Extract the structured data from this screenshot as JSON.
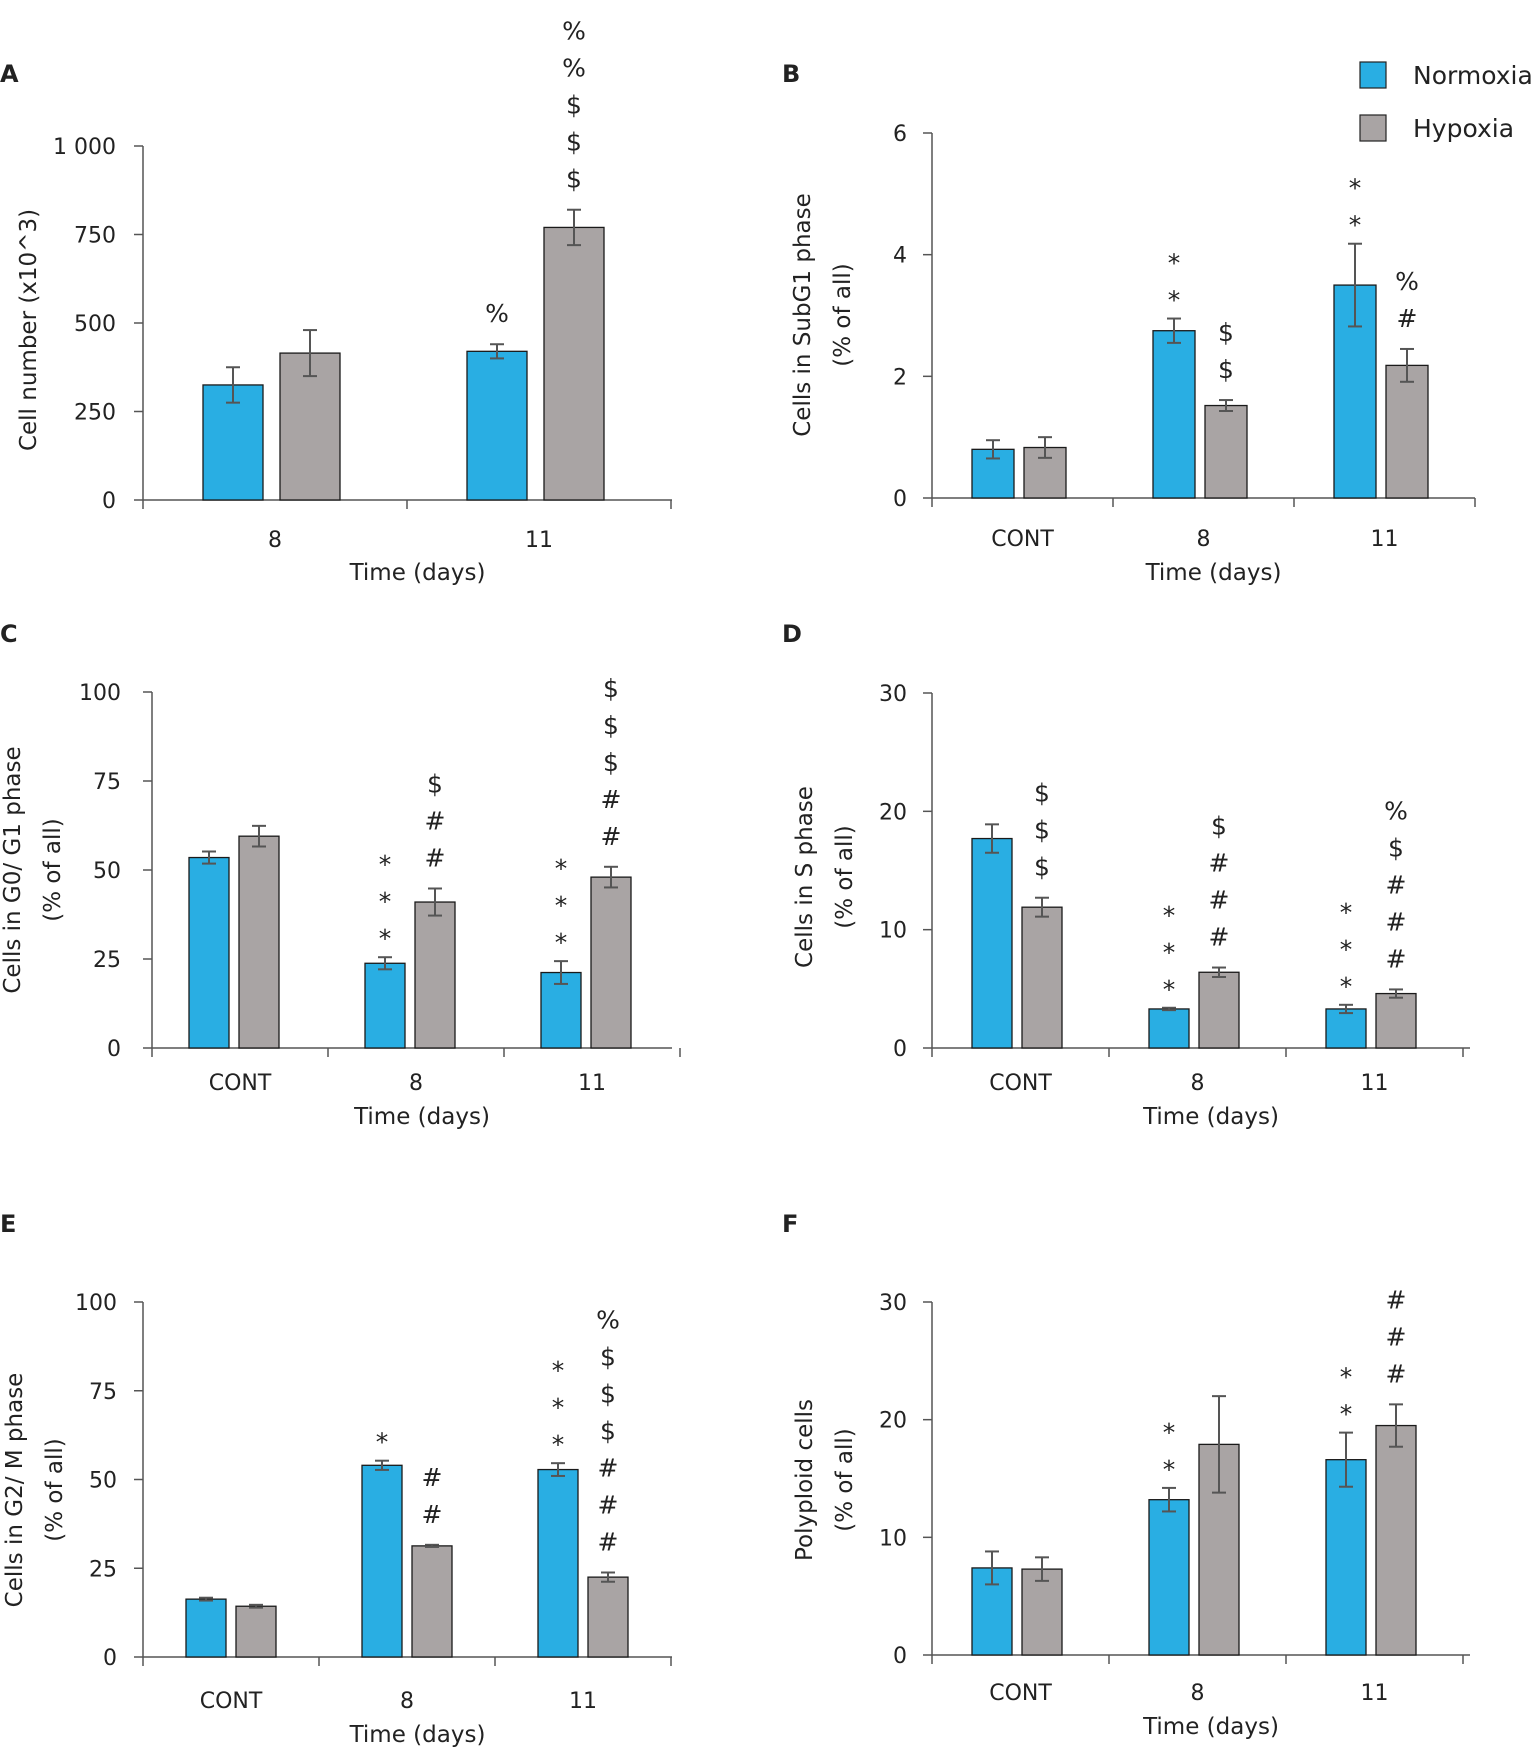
{
  "legend": {
    "items": [
      {
        "label": "Normoxia",
        "color": "#29aee3"
      },
      {
        "label": "Hypoxia",
        "color": "#a9a4a4"
      }
    ]
  },
  "colors": {
    "normoxia": "#29aee3",
    "hypoxia": "#a9a4a4",
    "axis": "#555555",
    "error": "#555555"
  },
  "chart_data": [
    {
      "panel": "A",
      "type": "bar",
      "categories": [
        "8",
        "11"
      ],
      "xlabel": "Time (days)",
      "ylabel": [
        "Cell number (x10^3)"
      ],
      "ylim": [
        0,
        1000
      ],
      "yticks": [
        0,
        250,
        500,
        750,
        1000
      ],
      "ytick_labels": [
        "0",
        "250",
        "500",
        "750",
        "1 000"
      ],
      "series": [
        {
          "name": "Normoxia",
          "values": [
            325,
            420
          ],
          "errors": [
            50,
            20
          ]
        },
        {
          "name": "Hypoxia",
          "values": [
            415,
            770
          ],
          "errors": [
            65,
            50
          ]
        }
      ],
      "annotations": [
        {
          "series": "Normoxia",
          "category": "11",
          "marks": [
            "%"
          ]
        },
        {
          "series": "Hypoxia",
          "category": "11",
          "marks": [
            "%",
            "%",
            "$",
            "$",
            "$"
          ]
        }
      ]
    },
    {
      "panel": "B",
      "type": "bar",
      "categories": [
        "CONT",
        "8",
        "11"
      ],
      "xlabel": "Time (days)",
      "ylabel": [
        "Cells in SubG1 phase",
        "(% of all)"
      ],
      "ylim": [
        0,
        6
      ],
      "yticks": [
        0,
        2,
        4,
        6
      ],
      "ytick_labels": [
        "0",
        "2",
        "4",
        "6"
      ],
      "series": [
        {
          "name": "Normoxia",
          "values": [
            0.8,
            2.75,
            3.5
          ],
          "errors": [
            0.15,
            0.2,
            0.68
          ]
        },
        {
          "name": "Hypoxia",
          "values": [
            0.83,
            1.52,
            2.18
          ],
          "errors": [
            0.17,
            0.09,
            0.27
          ]
        }
      ],
      "annotations": [
        {
          "series": "Normoxia",
          "category": "8",
          "marks": [
            "*",
            "*"
          ]
        },
        {
          "series": "Hypoxia",
          "category": "8",
          "marks": [
            "$",
            "$"
          ]
        },
        {
          "series": "Normoxia",
          "category": "11",
          "marks": [
            "*",
            "*"
          ]
        },
        {
          "series": "Hypoxia",
          "category": "11",
          "marks": [
            "%",
            "#"
          ]
        }
      ]
    },
    {
      "panel": "C",
      "type": "bar",
      "categories": [
        "CONT",
        "8",
        "11"
      ],
      "xlabel": "Time (days)",
      "ylabel": [
        "Cells in G0/ G1 phase",
        "(% of all)"
      ],
      "ylim": [
        0,
        100
      ],
      "yticks": [
        0,
        25,
        50,
        75,
        100
      ],
      "ytick_labels": [
        "0",
        "25",
        "50",
        "75",
        "100"
      ],
      "series": [
        {
          "name": "Normoxia",
          "values": [
            53.5,
            23.8,
            21.2
          ],
          "errors": [
            1.7,
            1.7,
            3.2
          ]
        },
        {
          "name": "Hypoxia",
          "values": [
            59.5,
            41,
            48
          ],
          "errors": [
            2.9,
            3.8,
            2.9
          ]
        }
      ],
      "annotations": [
        {
          "series": "Normoxia",
          "category": "8",
          "marks": [
            "*",
            "*",
            "*"
          ]
        },
        {
          "series": "Hypoxia",
          "category": "8",
          "marks": [
            "$",
            "#",
            "#"
          ]
        },
        {
          "series": "Normoxia",
          "category": "11",
          "marks": [
            "*",
            "*",
            "*"
          ]
        },
        {
          "series": "Hypoxia",
          "category": "11",
          "marks": [
            "$",
            "$",
            "$",
            "#",
            "#"
          ]
        }
      ]
    },
    {
      "panel": "D",
      "type": "bar",
      "categories": [
        "CONT",
        "8",
        "11"
      ],
      "xlabel": "Time (days)",
      "ylabel": [
        "Cells in S phase",
        "(% of all)"
      ],
      "ylim": [
        0,
        30
      ],
      "yticks": [
        0,
        10,
        20,
        30
      ],
      "ytick_labels": [
        "0",
        "10",
        "20",
        "30"
      ],
      "series": [
        {
          "name": "Normoxia",
          "values": [
            17.7,
            3.3,
            3.3
          ],
          "errors": [
            1.2,
            0.1,
            0.35
          ]
        },
        {
          "name": "Hypoxia",
          "values": [
            11.9,
            6.4,
            4.6
          ],
          "errors": [
            0.8,
            0.4,
            0.35
          ]
        }
      ],
      "annotations": [
        {
          "series": "Hypoxia",
          "category": "CONT",
          "marks": [
            "$",
            "$",
            "$"
          ]
        },
        {
          "series": "Normoxia",
          "category": "8",
          "marks": [
            "*",
            "*",
            "*"
          ]
        },
        {
          "series": "Hypoxia",
          "category": "8",
          "marks": [
            "$",
            "#",
            "#",
            "#"
          ]
        },
        {
          "series": "Normoxia",
          "category": "11",
          "marks": [
            "*",
            "*",
            "*"
          ]
        },
        {
          "series": "Hypoxia",
          "category": "11",
          "marks": [
            "%",
            "$",
            "#",
            "#",
            "#"
          ]
        }
      ]
    },
    {
      "panel": "E",
      "type": "bar",
      "categories": [
        "CONT",
        "8",
        "11"
      ],
      "xlabel": "Time (days)",
      "ylabel": [
        "Cells in G2/ M phase",
        "(% of all)"
      ],
      "ylim": [
        0,
        100
      ],
      "yticks": [
        0,
        25,
        50,
        75,
        100
      ],
      "ytick_labels": [
        "0",
        "25",
        "50",
        "75",
        "100"
      ],
      "series": [
        {
          "name": "Normoxia",
          "values": [
            16.3,
            54,
            52.8
          ],
          "errors": [
            0.4,
            1.3,
            1.8
          ]
        },
        {
          "name": "Hypoxia",
          "values": [
            14.3,
            31.3,
            22.5
          ],
          "errors": [
            0.4,
            0.3,
            1.3
          ]
        }
      ],
      "annotations": [
        {
          "series": "Normoxia",
          "category": "8",
          "marks": [
            "*"
          ]
        },
        {
          "series": "Hypoxia",
          "category": "8",
          "marks": [
            "#",
            "#"
          ]
        },
        {
          "series": "Normoxia",
          "category": "11",
          "marks": [
            "*",
            "*",
            "*"
          ]
        },
        {
          "series": "Hypoxia",
          "category": "11",
          "marks": [
            "%",
            "$",
            "$",
            "$",
            "#",
            "#",
            "#"
          ]
        }
      ]
    },
    {
      "panel": "F",
      "type": "bar",
      "categories": [
        "CONT",
        "8",
        "11"
      ],
      "xlabel": "Time (days)",
      "ylabel": [
        "Polyploid cells",
        "(% of all)"
      ],
      "ylim": [
        0,
        30
      ],
      "yticks": [
        0,
        10,
        20,
        30
      ],
      "ytick_labels": [
        "0",
        "10",
        "20",
        "30"
      ],
      "series": [
        {
          "name": "Normoxia",
          "values": [
            7.4,
            13.2,
            16.6
          ],
          "errors": [
            1.4,
            1.0,
            2.3
          ]
        },
        {
          "name": "Hypoxia",
          "values": [
            7.3,
            17.9,
            19.5
          ],
          "errors": [
            1.0,
            4.1,
            1.8
          ]
        }
      ],
      "annotations": [
        {
          "series": "Normoxia",
          "category": "8",
          "marks": [
            "*",
            "*"
          ]
        },
        {
          "series": "Normoxia",
          "category": "11",
          "marks": [
            "*",
            "*"
          ]
        },
        {
          "series": "Hypoxia",
          "category": "11",
          "marks": [
            "#",
            "#",
            "#"
          ]
        }
      ]
    }
  ]
}
